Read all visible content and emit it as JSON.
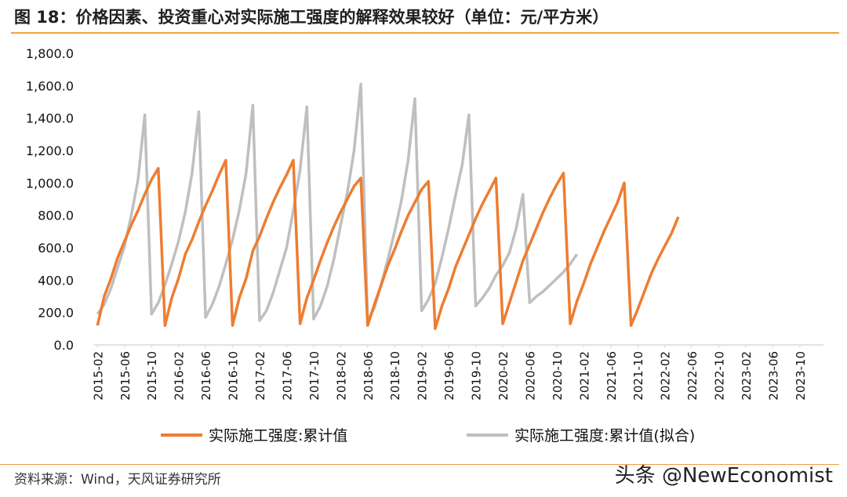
{
  "header": {
    "title": "图 18：价格因素、投资重心对实际施工强度的解释效果较好（单位：元/平方米）"
  },
  "footer": {
    "source": "资料来源：Wind，天风证券研究所",
    "watermark": "头条 @NewEconomist"
  },
  "colors": {
    "actual": "#ED7D31",
    "fitted": "#BFBFBF",
    "rule": "#F0A040"
  },
  "chart_data": {
    "type": "line",
    "title": "价格因素、投资重心对实际施工强度的解释效果较好",
    "ylabel": "元/平方米",
    "ylim": [
      0,
      1800
    ],
    "yticks": [
      0,
      200,
      400,
      600,
      800,
      1000,
      1200,
      1400,
      1600,
      1800
    ],
    "ytick_labels": [
      "0.0",
      "200.0",
      "400.0",
      "600.0",
      "800.0",
      "1,000.0",
      "1,200.0",
      "1,400.0",
      "1,600.0",
      "1,800.0"
    ],
    "x_tick_labels": [
      "2015-02",
      "2015-06",
      "2015-10",
      "2016-02",
      "2016-06",
      "2016-10",
      "2017-02",
      "2017-06",
      "2017-10",
      "2018-02",
      "2018-06",
      "2018-10",
      "2019-02",
      "2019-06",
      "2019-10",
      "2020-02",
      "2020-06",
      "2020-10",
      "2021-02",
      "2021-06",
      "2021-10",
      "2022-02",
      "2022-06",
      "2022-10",
      "2023-02",
      "2023-06",
      "2023-10"
    ],
    "months_per_point": 1,
    "start_month": "2015-02",
    "legend_position": "bottom",
    "series": [
      {
        "name": "实际施工强度:累计值",
        "values": [
          120,
          300,
          410,
          540,
          640,
          740,
          830,
          930,
          1020,
          1090,
          120,
          290,
          410,
          560,
          650,
          760,
          860,
          950,
          1050,
          1140,
          120,
          290,
          410,
          580,
          670,
          780,
          880,
          970,
          1050,
          1140,
          130,
          290,
          400,
          520,
          630,
          730,
          820,
          900,
          980,
          1030,
          120,
          250,
          370,
          490,
          590,
          700,
          800,
          880,
          960,
          1010,
          100,
          240,
          350,
          480,
          580,
          680,
          780,
          870,
          950,
          1030,
          130,
          260,
          390,
          520,
          620,
          720,
          820,
          910,
          990,
          1060,
          130,
          270,
          380,
          500,
          600,
          700,
          790,
          880,
          1000,
          120,
          220,
          330,
          440,
          530,
          610,
          690,
          790
        ]
      },
      {
        "name": "实际施工强度:累计值(拟合)",
        "values": [
          190,
          250,
          350,
          480,
          610,
          800,
          1020,
          1420,
          190,
          260,
          370,
          500,
          640,
          820,
          1060,
          1440,
          170,
          250,
          360,
          500,
          650,
          830,
          1060,
          1480,
          150,
          210,
          320,
          460,
          600,
          830,
          1080,
          1470,
          160,
          240,
          360,
          530,
          740,
          940,
          1200,
          1610,
          150,
          230,
          370,
          530,
          700,
          890,
          1140,
          1520,
          210,
          280,
          380,
          540,
          720,
          920,
          1110,
          1420,
          240,
          290,
          350,
          430,
          490,
          570,
          720,
          930,
          260,
          300,
          330,
          370,
          410,
          450,
          500,
          560
        ]
      }
    ]
  }
}
